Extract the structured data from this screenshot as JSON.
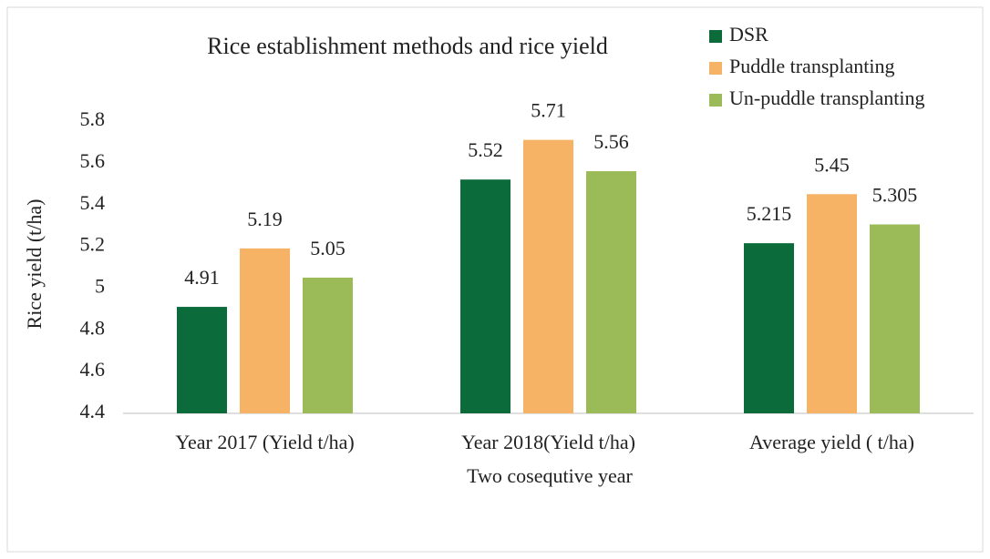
{
  "chart_data": {
    "type": "bar",
    "title": "Rice establishment methods and rice yield",
    "x_label": "Two cosequtive year",
    "y_label": "Rice yield (t/ha)",
    "categories": [
      "Year 2017 (Yield t/ha)",
      "Year 2018(Yield t/ha)",
      "Average yield ( t/ha)"
    ],
    "series": [
      {
        "name": "DSR",
        "color": "#0b6b3a",
        "values": [
          4.91,
          5.52,
          5.215
        ]
      },
      {
        "name": "Puddle transplanting",
        "color": "#f6b365",
        "values": [
          5.19,
          5.71,
          5.45
        ]
      },
      {
        "name": "Un-puddle transplanting",
        "color": "#9bbb59",
        "values": [
          5.05,
          5.56,
          5.305
        ]
      }
    ],
    "ylim": [
      4.4,
      5.8
    ],
    "yticks": [
      4.4,
      4.6,
      4.8,
      5,
      5.2,
      5.4,
      5.6,
      5.8
    ],
    "grid": false,
    "legend": "top-right",
    "data_labels": true
  }
}
